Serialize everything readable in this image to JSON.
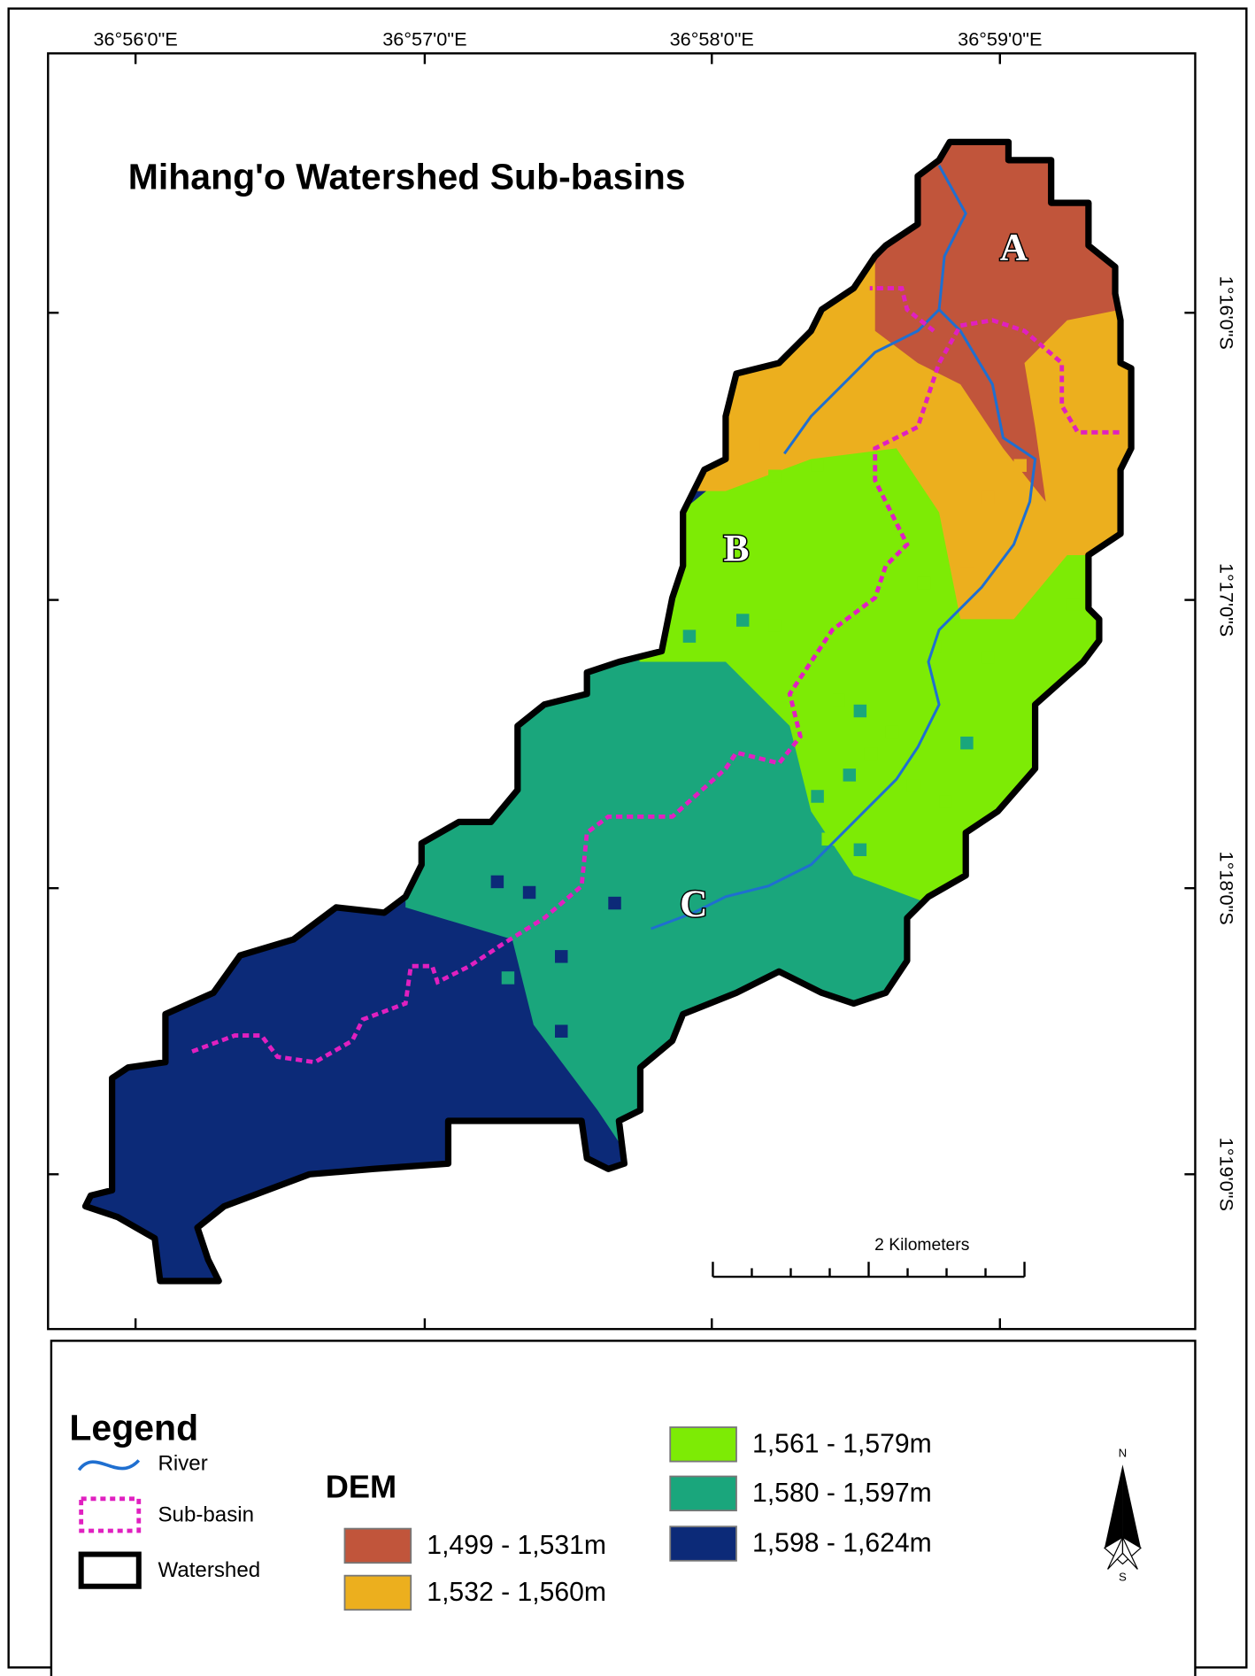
{
  "title": "Mihang'o Watershed Sub-basins",
  "longitude_labels": [
    "36°56'0\"E",
    "36°57'0\"E",
    "36°58'0\"E",
    "36°59'0\"E"
  ],
  "latitude_labels": [
    "1°16'0\"S",
    "1°17'0\"S",
    "1°18'0\"S",
    "1°19'0\"S"
  ],
  "subbasin_labels": [
    "A",
    "B",
    "C"
  ],
  "scale_bar": {
    "label": "2 Kilometers"
  },
  "legend": {
    "title": "Legend",
    "items": [
      {
        "label": "River"
      },
      {
        "label": "Sub-basin"
      },
      {
        "label": "Watershed"
      }
    ],
    "dem": {
      "title": "DEM",
      "classes": [
        {
          "label": "1,499 - 1,531m",
          "color": "#c1553b"
        },
        {
          "label": "1,532 - 1,560m",
          "color": "#ecaf1e"
        },
        {
          "label": "1,561 - 1,579m",
          "color": "#7deb05"
        },
        {
          "label": "1,580 - 1,597m",
          "color": "#1aa67c"
        },
        {
          "label": "1,598 - 1,624m",
          "color": "#0c2a78"
        }
      ]
    }
  },
  "north_arrow": {
    "n": "N",
    "s": "S"
  }
}
